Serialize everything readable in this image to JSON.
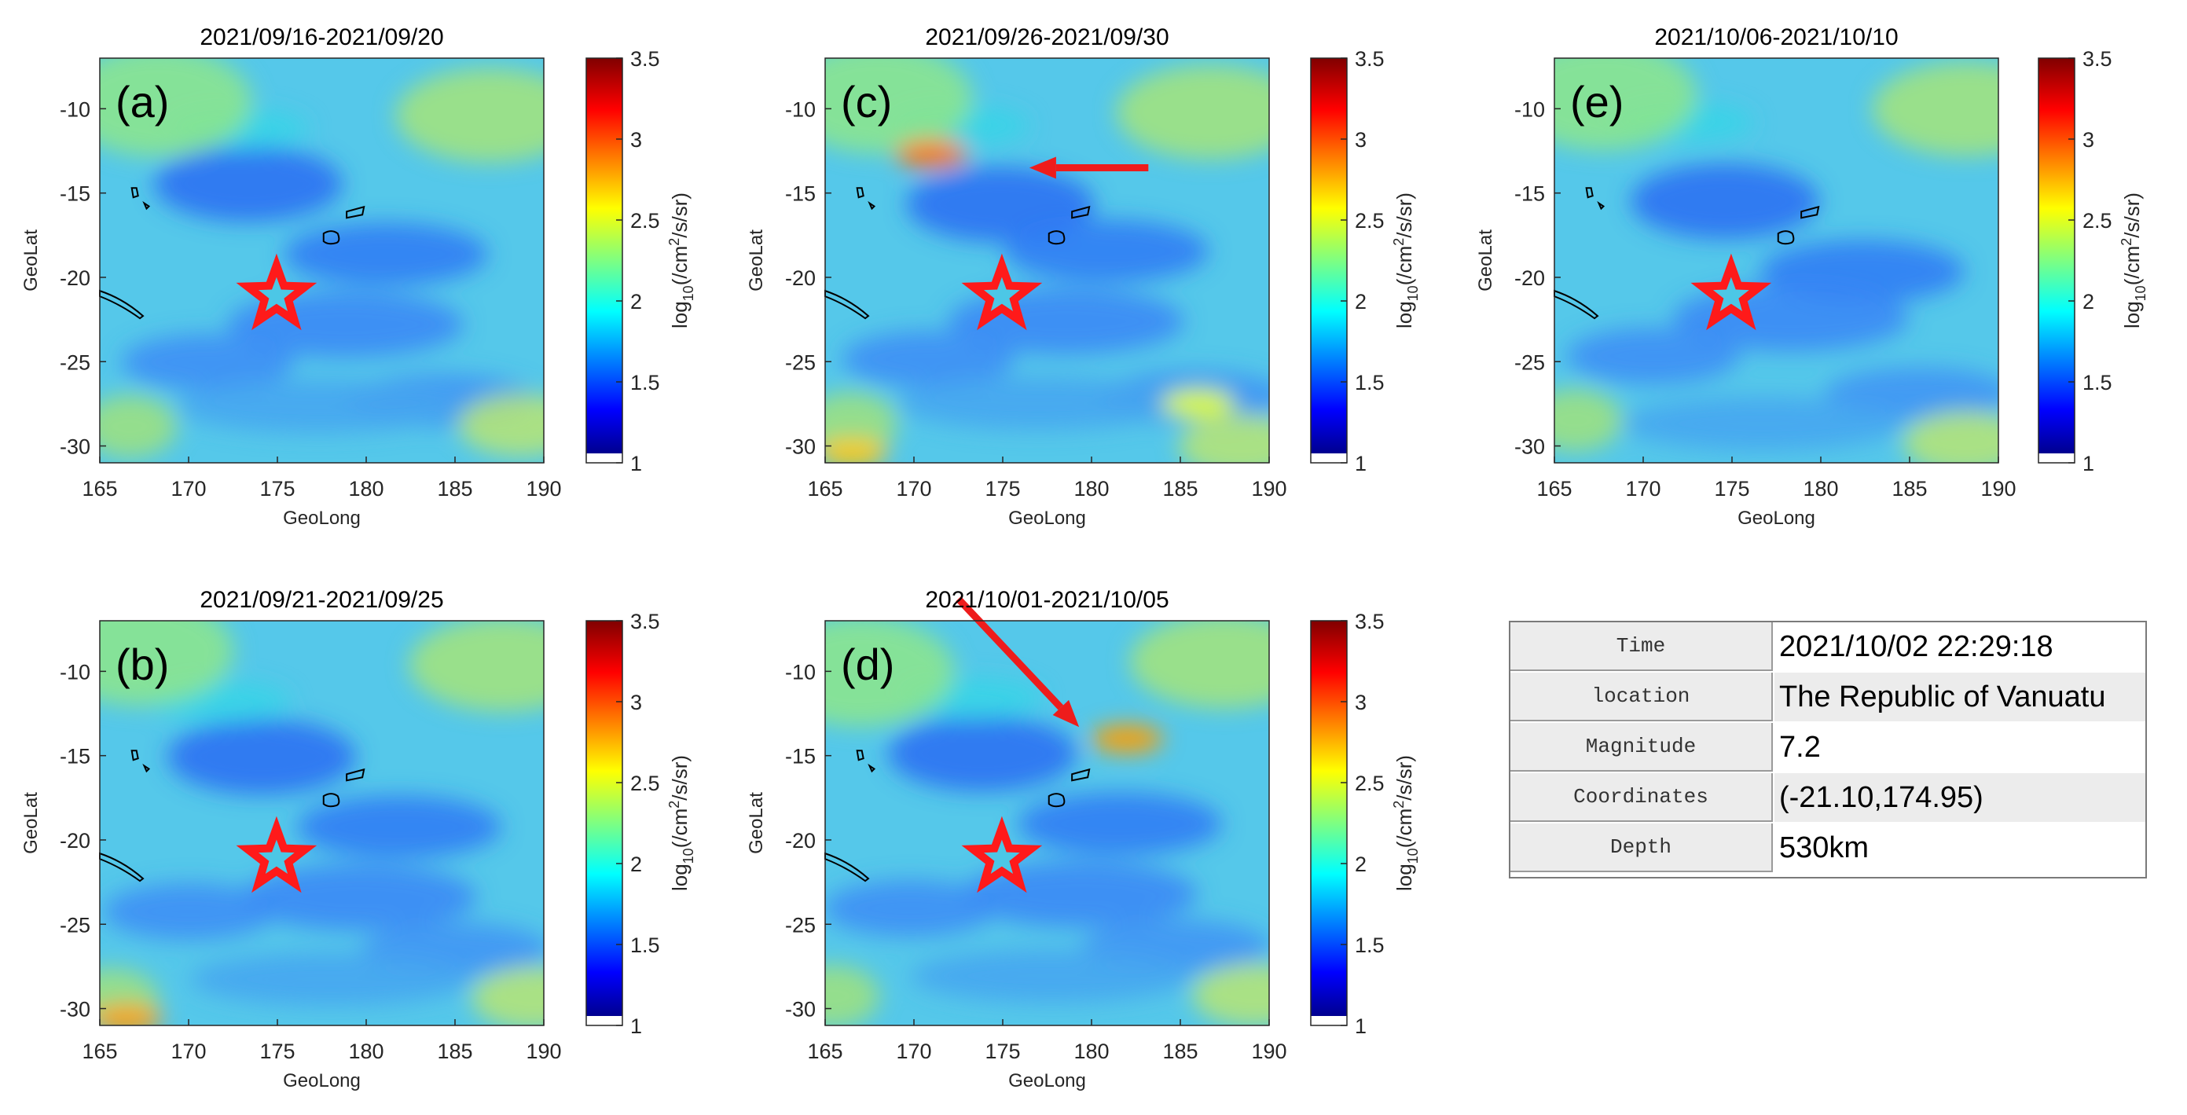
{
  "colors": {
    "star": "#ff1a1a",
    "arrow": "#ee1c1c",
    "table_shade": "#ececec"
  },
  "chart_data": [
    {
      "panel": "(a)",
      "type": "heatmap",
      "title": "2021/09/16-2021/09/20",
      "xlabel": "GeoLong",
      "ylabel": "GeoLat",
      "colorbar_label": "log10(/cm2/s/sr)",
      "xlim": [
        165,
        190
      ],
      "ylim": [
        -31,
        -7
      ],
      "xticks": [
        165,
        170,
        175,
        180,
        185,
        190
      ],
      "yticks": [
        -30,
        -25,
        -20,
        -15,
        -10
      ],
      "clim": [
        1,
        3.5
      ],
      "cticks": [
        "1",
        "1.5",
        "2",
        "2.5",
        "3",
        "3.5"
      ],
      "epicenter": {
        "lon": 174.95,
        "lat": -21.1
      },
      "hotspots": [],
      "arrow": null
    },
    {
      "panel": "(b)",
      "type": "heatmap",
      "title": "2021/09/21-2021/09/25",
      "xlabel": "GeoLong",
      "ylabel": "GeoLat",
      "colorbar_label": "log10(/cm2/s/sr)",
      "xlim": [
        165,
        190
      ],
      "ylim": [
        -31,
        -7
      ],
      "xticks": [
        165,
        170,
        175,
        180,
        185,
        190
      ],
      "yticks": [
        -30,
        -25,
        -20,
        -15,
        -10
      ],
      "clim": [
        1,
        3.5
      ],
      "cticks": [
        "1",
        "1.5",
        "2",
        "2.5",
        "3",
        "3.5"
      ],
      "epicenter": {
        "lon": 174.95,
        "lat": -21.1
      },
      "hotspots": [
        {
          "lon": 166.5,
          "lat": -30.6,
          "value": 2.8
        }
      ],
      "arrow": null
    },
    {
      "panel": "(c)",
      "type": "heatmap",
      "title": "2021/09/26-2021/09/30",
      "xlabel": "GeoLong",
      "ylabel": "GeoLat",
      "colorbar_label": "log10(/cm2/s/sr)",
      "xlim": [
        165,
        190
      ],
      "ylim": [
        -31,
        -7
      ],
      "xticks": [
        165,
        170,
        175,
        180,
        185,
        190
      ],
      "yticks": [
        -30,
        -25,
        -20,
        -15,
        -10
      ],
      "clim": [
        1,
        3.5
      ],
      "cticks": [
        "1",
        "1.5",
        "2",
        "2.5",
        "3",
        "3.5"
      ],
      "epicenter": {
        "lon": 174.95,
        "lat": -21.1
      },
      "hotspots": [
        {
          "lon": 171,
          "lat": -12.7,
          "value": 2.9
        },
        {
          "lon": 166.5,
          "lat": -30.4,
          "value": 2.7
        },
        {
          "lon": 186,
          "lat": -27.5,
          "value": 2.5
        }
      ],
      "arrow": {
        "from": [
          183.2,
          -13.5
        ],
        "to": [
          176.5,
          -13.5
        ]
      }
    },
    {
      "panel": "(d)",
      "type": "heatmap",
      "title": "2021/10/01-2021/10/05",
      "xlabel": "GeoLong",
      "ylabel": "GeoLat",
      "colorbar_label": "log10(/cm2/s/sr)",
      "xlim": [
        165,
        190
      ],
      "ylim": [
        -31,
        -7
      ],
      "xticks": [
        165,
        170,
        175,
        180,
        185,
        190
      ],
      "yticks": [
        -30,
        -25,
        -20,
        -15,
        -10
      ],
      "clim": [
        1,
        3.5
      ],
      "cticks": [
        "1",
        "1.5",
        "2",
        "2.5",
        "3",
        "3.5"
      ],
      "epicenter": {
        "lon": 174.95,
        "lat": -21.1
      },
      "hotspots": [
        {
          "lon": 182,
          "lat": -14,
          "value": 2.8
        }
      ],
      "arrow": {
        "from": [
          172.5,
          -5.7
        ],
        "to": [
          179.3,
          -13.3
        ]
      }
    },
    {
      "panel": "(e)",
      "type": "heatmap",
      "title": "2021/10/06-2021/10/10",
      "xlabel": "GeoLong",
      "ylabel": "GeoLat",
      "colorbar_label": "log10(/cm2/s/sr)",
      "xlim": [
        165,
        190
      ],
      "ylim": [
        -31,
        -7
      ],
      "xticks": [
        165,
        170,
        175,
        180,
        185,
        190
      ],
      "yticks": [
        -30,
        -25,
        -20,
        -15,
        -10
      ],
      "clim": [
        1,
        3.5
      ],
      "cticks": [
        "1",
        "1.5",
        "2",
        "2.5",
        "3",
        "3.5"
      ],
      "epicenter": {
        "lon": 174.95,
        "lat": -21.1
      },
      "hotspots": [],
      "arrow": null
    }
  ],
  "event_table": [
    {
      "label": "Time",
      "value": "2021/10/02 22:29:18"
    },
    {
      "label": "location",
      "value": "The Republic of Vanuatu"
    },
    {
      "label": "Magnitude",
      "value": "7.2"
    },
    {
      "label": "Coordinates",
      "value": "(-21.10,174.95)"
    },
    {
      "label": "Depth",
      "value": "530km"
    }
  ]
}
